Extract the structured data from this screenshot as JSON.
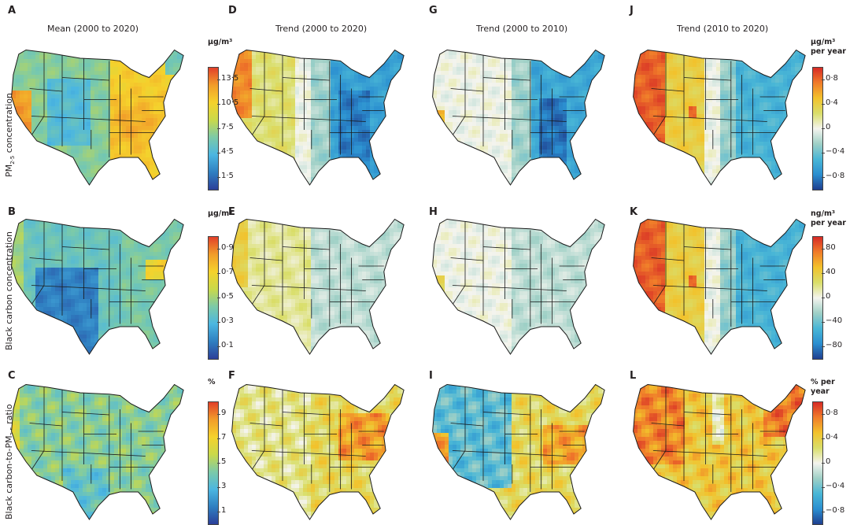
{
  "chart_data": {
    "type": "heatmap",
    "subtype": "choropleth-map-grid",
    "region": "Contiguous United States",
    "columns": [
      {
        "letter_row_order": [
          "A",
          "B",
          "C"
        ],
        "title": "Mean (2000 to 2020)"
      },
      {
        "letter_row_order": [
          "D",
          "E",
          "F"
        ],
        "title": "Trend (2000 to 2020)"
      },
      {
        "letter_row_order": [
          "G",
          "H",
          "I"
        ],
        "title": "Trend (2000 to 2010)"
      },
      {
        "letter_row_order": [
          "J",
          "K",
          "L"
        ],
        "title": "Trend (2010 to 2020)"
      }
    ],
    "rows": [
      {
        "label_main": "PM",
        "label_sub": "2·5",
        "label_rest": " concentration"
      },
      {
        "label_main": "Black carbon concentration",
        "label_sub": "",
        "label_rest": ""
      },
      {
        "label_main": "Black carbon-to-PM",
        "label_sub": "2·5",
        "label_rest": " ratio"
      }
    ],
    "colorbars": [
      {
        "id": "mean-pm25",
        "unit": "μg/m³",
        "ticks": [
          "13·5",
          "10·5",
          "7·5",
          "4·5",
          "1·5"
        ],
        "range": [
          0,
          15
        ],
        "tick_values": [
          13.5,
          10.5,
          7.5,
          4.5,
          1.5
        ]
      },
      {
        "id": "trend-pm25",
        "unit": "μg/m³\nper year",
        "ticks": [
          "0·8",
          "0·4",
          "0",
          "−0·4",
          "−0·8"
        ],
        "range": [
          -1,
          1
        ],
        "tick_values": [
          0.8,
          0.4,
          0,
          -0.4,
          -0.8
        ]
      },
      {
        "id": "mean-bc",
        "unit": "μg/m³",
        "ticks": [
          "0·9",
          "0·7",
          "0·5",
          "0·3",
          "0·1"
        ],
        "range": [
          0,
          1
        ],
        "tick_values": [
          0.9,
          0.7,
          0.5,
          0.3,
          0.1
        ]
      },
      {
        "id": "trend-bc",
        "unit": "ng/m³\nper year",
        "ticks": [
          "80",
          "40",
          "0",
          "−40",
          "−80"
        ],
        "range": [
          -100,
          100
        ],
        "tick_values": [
          80,
          40,
          0,
          -40,
          -80
        ]
      },
      {
        "id": "mean-ratio",
        "unit": "%",
        "ticks": [
          "9",
          "7",
          "5",
          "3",
          "1"
        ],
        "range": [
          0,
          10
        ],
        "tick_values": [
          9,
          7,
          5,
          3,
          1
        ]
      },
      {
        "id": "trend-ratio",
        "unit": "% per\nyear",
        "ticks": [
          "0·8",
          "0·4",
          "0",
          "−0·4",
          "−0·8"
        ],
        "range": [
          -1,
          1
        ],
        "tick_values": [
          0.8,
          0.4,
          0,
          -0.4,
          -0.8
        ]
      }
    ],
    "panels": [
      {
        "letter": "A",
        "row": 0,
        "col": 0,
        "pattern": "mean-pm25",
        "description": "High in Southeast/Midwest and California (~10-13.5), low in Mountain West (~4.5)"
      },
      {
        "letter": "D",
        "row": 0,
        "col": 1,
        "pattern": "trend-west-up-east-down",
        "description": "Strong decline in East (~-0.8), increase in Pacific Northwest/California (~+0.8)"
      },
      {
        "letter": "G",
        "row": 0,
        "col": 2,
        "pattern": "trend-east-down",
        "description": "Strong decline in East, near zero in West"
      },
      {
        "letter": "J",
        "row": 0,
        "col": 3,
        "pattern": "trend-west-strong-up",
        "description": "Strong increase in West (~+0.8), decline in East (~-0.4)"
      },
      {
        "letter": "B",
        "row": 1,
        "col": 0,
        "pattern": "mean-bc",
        "description": "Low in Southwest (~0.1), higher in Northeast/urban areas (~0.5-0.9)"
      },
      {
        "letter": "E",
        "row": 1,
        "col": 1,
        "pattern": "trend-weak-west-up",
        "description": "Slight increase in West, slight decrease in East"
      },
      {
        "letter": "H",
        "row": 1,
        "col": 2,
        "pattern": "trend-weak",
        "description": "Near zero, slight decline in East"
      },
      {
        "letter": "K",
        "row": 1,
        "col": 3,
        "pattern": "trend-west-strong-up",
        "description": "Increase in West (~+40 to +80), slight decline in East"
      },
      {
        "letter": "C",
        "row": 2,
        "col": 0,
        "pattern": "mean-ratio",
        "description": "Mostly ~3-5%, locally higher"
      },
      {
        "letter": "F",
        "row": 2,
        "col": 1,
        "pattern": "trend-ratio-east-up",
        "description": "Increase across East (~+0.4 to +0.8)"
      },
      {
        "letter": "I",
        "row": 2,
        "col": 2,
        "pattern": "trend-ratio-mixed",
        "description": "Decrease in Mountain West, increase in East"
      },
      {
        "letter": "L",
        "row": 2,
        "col": 3,
        "pattern": "trend-ratio-up",
        "description": "Increase across most of country, strongest in West and Northeast"
      }
    ]
  }
}
